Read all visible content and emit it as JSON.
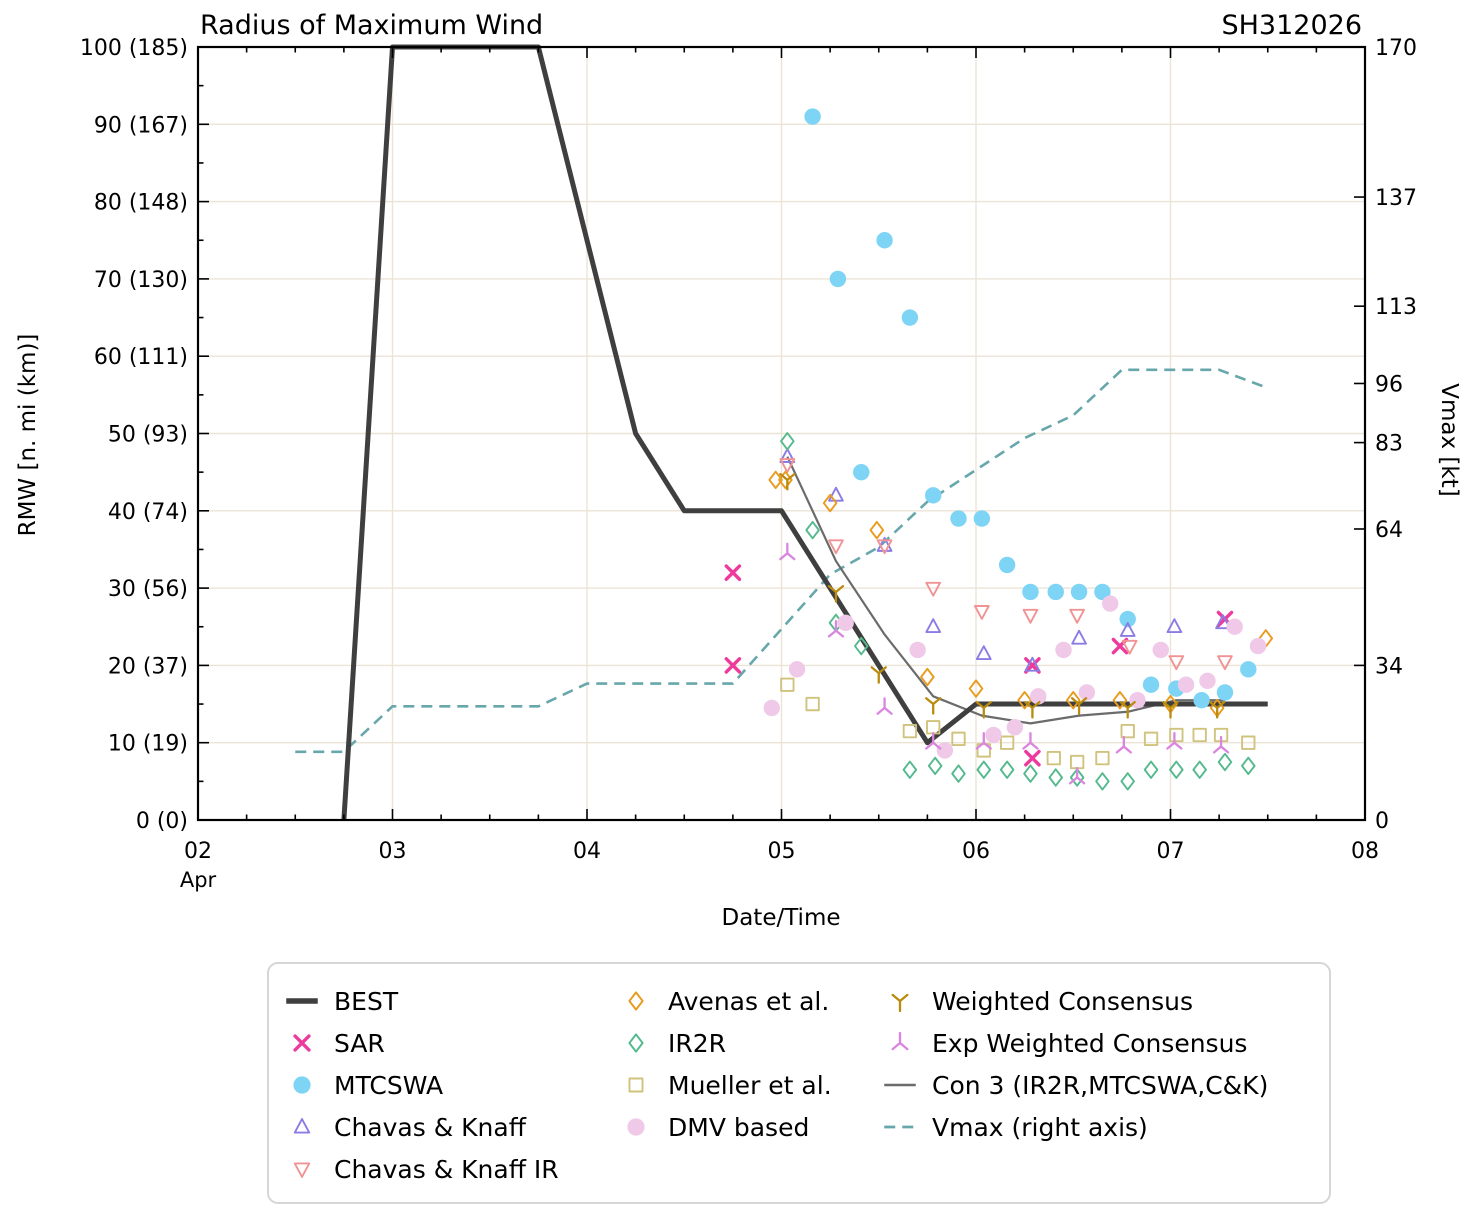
{
  "header": {
    "title": "Radius of Maximum Wind",
    "storm_id": "SH312026"
  },
  "axis_labels": {
    "x": "Date/Time",
    "y_left": "RMW [n. mi (km)]",
    "y_right": "Vmax [kt]",
    "month": "Apr"
  },
  "chart_data": {
    "type": "mixed",
    "title": "Radius of Maximum Wind",
    "storm_id": "SH312026",
    "xlabel": "Date/Time",
    "ylabel_left": "RMW [n. mi (km)]",
    "ylabel_right": "Vmax [kt]",
    "x_axis": {
      "month": "Apr",
      "start_day": 2,
      "end_day": 8,
      "major_tick_labels": [
        "02",
        "03",
        "04",
        "05",
        "06",
        "07",
        "08"
      ],
      "major_tick_days": [
        2,
        3,
        4,
        5,
        6,
        7,
        8
      ],
      "minor_step_days": 0.25,
      "grid": true
    },
    "y_left_axis": {
      "min": 0,
      "max": 100,
      "minor_step": 5,
      "grid": true,
      "ticks": [
        {
          "v": 0,
          "label": "0 (0)"
        },
        {
          "v": 10,
          "label": "10 (19)"
        },
        {
          "v": 20,
          "label": "20 (37)"
        },
        {
          "v": 30,
          "label": "30 (56)"
        },
        {
          "v": 40,
          "label": "40 (74)"
        },
        {
          "v": 50,
          "label": "50 (93)"
        },
        {
          "v": 60,
          "label": "60 (111)"
        },
        {
          "v": 70,
          "label": "70 (130)"
        },
        {
          "v": 80,
          "label": "80 (148)"
        },
        {
          "v": 90,
          "label": "90 (167)"
        },
        {
          "v": 100,
          "label": "100 (185)"
        }
      ]
    },
    "y_right_axis": {
      "min": 0,
      "max": 170,
      "ticks": [
        0,
        34,
        64,
        83,
        96,
        113,
        137,
        170
      ]
    },
    "colors": {
      "grid": "#ece3d7",
      "spine": "#000000"
    },
    "legend_position": "below",
    "legend_columns": [
      [
        0,
        1,
        2,
        3,
        4
      ],
      [
        5,
        6,
        7,
        8
      ],
      [
        9,
        10,
        11,
        12
      ]
    ],
    "series": [
      {
        "name": "BEST",
        "kind": "line",
        "marker": "line-thick",
        "color": "#3f3f3f",
        "width": 5,
        "axis": "left",
        "points": [
          [
            2.75,
            0
          ],
          [
            3.0,
            100
          ],
          [
            3.75,
            100
          ],
          [
            4.25,
            50
          ],
          [
            4.5,
            40
          ],
          [
            5.0,
            40
          ],
          [
            5.75,
            10
          ],
          [
            6.0,
            15
          ],
          [
            7.5,
            15
          ]
        ]
      },
      {
        "name": "SAR",
        "kind": "scatter",
        "marker": "x",
        "color": "#ee3a9c",
        "axis": "left",
        "points": [
          [
            4.75,
            32
          ],
          [
            4.75,
            20
          ],
          [
            6.29,
            20
          ],
          [
            6.29,
            8
          ],
          [
            6.74,
            22.5
          ],
          [
            7.28,
            26
          ]
        ]
      },
      {
        "name": "MTCSWA",
        "kind": "scatter",
        "marker": "circle",
        "color": "#7dd4f5",
        "axis": "left",
        "points": [
          [
            5.16,
            91
          ],
          [
            5.29,
            70
          ],
          [
            5.41,
            45
          ],
          [
            5.53,
            75
          ],
          [
            5.66,
            65
          ],
          [
            5.78,
            42
          ],
          [
            5.91,
            39
          ],
          [
            6.03,
            39
          ],
          [
            6.16,
            33
          ],
          [
            6.28,
            29.5
          ],
          [
            6.41,
            29.5
          ],
          [
            6.53,
            29.5
          ],
          [
            6.65,
            29.5
          ],
          [
            6.78,
            26
          ],
          [
            6.9,
            17.5
          ],
          [
            7.03,
            17
          ],
          [
            7.16,
            15.5
          ],
          [
            7.28,
            16.5
          ],
          [
            7.4,
            19.5
          ]
        ]
      },
      {
        "name": "Chavas & Knaff",
        "kind": "scatter",
        "marker": "triangle-up",
        "color": "#8b7ce4",
        "axis": "left",
        "points": [
          [
            5.03,
            47
          ],
          [
            5.28,
            42
          ],
          [
            5.53,
            35.5
          ],
          [
            5.78,
            25
          ],
          [
            6.04,
            21.5
          ],
          [
            6.29,
            20
          ],
          [
            6.53,
            23.5
          ],
          [
            6.78,
            24.5
          ],
          [
            7.02,
            25
          ],
          [
            7.27,
            25.5
          ]
        ]
      },
      {
        "name": "Chavas & Knaff IR",
        "kind": "scatter",
        "marker": "triangle-down",
        "color": "#f19394",
        "axis": "left",
        "points": [
          [
            5.03,
            46
          ],
          [
            5.28,
            35.5
          ],
          [
            5.53,
            35.5
          ],
          [
            5.78,
            30
          ],
          [
            6.03,
            27
          ],
          [
            6.28,
            26.5
          ],
          [
            6.52,
            26.5
          ],
          [
            6.79,
            22.5
          ],
          [
            7.03,
            20.5
          ],
          [
            7.28,
            20.5
          ]
        ]
      },
      {
        "name": "Avenas et al.",
        "kind": "scatter",
        "marker": "diamond",
        "color": "#e99b1e",
        "axis": "left",
        "points": [
          [
            4.97,
            44
          ],
          [
            5.02,
            44
          ],
          [
            5.25,
            41
          ],
          [
            5.49,
            37.5
          ],
          [
            5.75,
            18.5
          ],
          [
            6.0,
            17
          ],
          [
            6.25,
            15.5
          ],
          [
            6.5,
            15.5
          ],
          [
            6.74,
            15.5
          ],
          [
            7.0,
            15
          ],
          [
            7.24,
            14.5
          ],
          [
            7.49,
            23.5
          ]
        ]
      },
      {
        "name": "IR2R",
        "kind": "scatter",
        "marker": "diamond",
        "color": "#54ba8e",
        "axis": "left",
        "points": [
          [
            5.03,
            49
          ],
          [
            5.16,
            37.5
          ],
          [
            5.28,
            25.5
          ],
          [
            5.41,
            22.5
          ],
          [
            5.66,
            6.5
          ],
          [
            5.79,
            7
          ],
          [
            5.91,
            6
          ],
          [
            6.04,
            6.5
          ],
          [
            6.16,
            6.5
          ],
          [
            6.28,
            6
          ],
          [
            6.41,
            5.5
          ],
          [
            6.52,
            5.5
          ],
          [
            6.65,
            5
          ],
          [
            6.78,
            5
          ],
          [
            6.9,
            6.5
          ],
          [
            7.03,
            6.5
          ],
          [
            7.15,
            6.5
          ],
          [
            7.28,
            7.5
          ],
          [
            7.4,
            7
          ]
        ]
      },
      {
        "name": "Mueller et al.",
        "kind": "scatter",
        "marker": "square",
        "color": "#d0c37d",
        "axis": "left",
        "points": [
          [
            5.03,
            17.5
          ],
          [
            5.16,
            15
          ],
          [
            5.66,
            11.5
          ],
          [
            5.78,
            12
          ],
          [
            5.91,
            10.5
          ],
          [
            6.04,
            9
          ],
          [
            6.16,
            10
          ],
          [
            6.4,
            8
          ],
          [
            6.52,
            7.5
          ],
          [
            6.65,
            8
          ],
          [
            6.78,
            11.5
          ],
          [
            6.9,
            10.5
          ],
          [
            7.03,
            11
          ],
          [
            7.15,
            11
          ],
          [
            7.26,
            11
          ],
          [
            7.4,
            10
          ]
        ]
      },
      {
        "name": "DMV based",
        "kind": "scatter",
        "marker": "circle",
        "color": "#efc9e7",
        "axis": "left",
        "points": [
          [
            4.95,
            14.5
          ],
          [
            5.08,
            19.5
          ],
          [
            5.33,
            25.5
          ],
          [
            5.7,
            22
          ],
          [
            5.84,
            9
          ],
          [
            6.09,
            11
          ],
          [
            6.2,
            12
          ],
          [
            6.32,
            16
          ],
          [
            6.45,
            22
          ],
          [
            6.57,
            16.5
          ],
          [
            6.69,
            28
          ],
          [
            6.83,
            15.5
          ],
          [
            6.95,
            22
          ],
          [
            7.08,
            17.5
          ],
          [
            7.19,
            18
          ],
          [
            7.33,
            25
          ],
          [
            7.45,
            22.5
          ]
        ]
      },
      {
        "name": "Weighted Consensus",
        "kind": "scatter",
        "marker": "y-down",
        "color": "#b98b0e",
        "axis": "left",
        "points": [
          [
            5.03,
            44
          ],
          [
            5.28,
            29.5
          ],
          [
            5.5,
            19
          ],
          [
            5.78,
            15
          ],
          [
            6.04,
            14.5
          ],
          [
            6.29,
            14.5
          ],
          [
            6.53,
            15
          ],
          [
            6.78,
            14.5
          ],
          [
            7.0,
            14.5
          ],
          [
            7.24,
            14.5
          ]
        ]
      },
      {
        "name": "Exp Weighted Consensus",
        "kind": "scatter",
        "marker": "y-up",
        "color": "#da85de",
        "axis": "left",
        "points": [
          [
            5.03,
            34.5
          ],
          [
            5.28,
            24.5
          ],
          [
            5.53,
            14.5
          ],
          [
            5.78,
            10
          ],
          [
            6.04,
            10
          ],
          [
            6.28,
            10
          ],
          [
            6.52,
            5.5
          ],
          [
            6.76,
            9.5
          ],
          [
            7.02,
            10
          ],
          [
            7.26,
            9.5
          ]
        ]
      },
      {
        "name": "Con 3 (IR2R,MTCSWA,C&K)",
        "kind": "line",
        "marker": "line-thin",
        "color": "#6b6b6b",
        "width": 2.2,
        "axis": "left",
        "points": [
          [
            5.03,
            47
          ],
          [
            5.28,
            33.5
          ],
          [
            5.53,
            24
          ],
          [
            5.78,
            16
          ],
          [
            6.03,
            13.5
          ],
          [
            6.28,
            12.5
          ],
          [
            6.53,
            13.5
          ],
          [
            6.78,
            14
          ],
          [
            7.03,
            15.5
          ],
          [
            7.28,
            15.5
          ]
        ]
      },
      {
        "name": "Vmax (right axis)",
        "kind": "line",
        "marker": "line-dashed",
        "color": "#67a7ac",
        "width": 2.6,
        "dashed": true,
        "axis": "right",
        "points": [
          [
            2.5,
            15
          ],
          [
            2.75,
            15
          ],
          [
            3.0,
            25
          ],
          [
            3.75,
            25
          ],
          [
            4.0,
            30
          ],
          [
            4.75,
            30
          ],
          [
            5.0,
            42
          ],
          [
            5.25,
            54
          ],
          [
            5.5,
            60
          ],
          [
            5.75,
            70
          ],
          [
            6.0,
            77
          ],
          [
            6.25,
            84
          ],
          [
            6.5,
            89
          ],
          [
            6.75,
            99
          ],
          [
            7.25,
            99
          ],
          [
            7.5,
            95
          ]
        ]
      }
    ]
  }
}
